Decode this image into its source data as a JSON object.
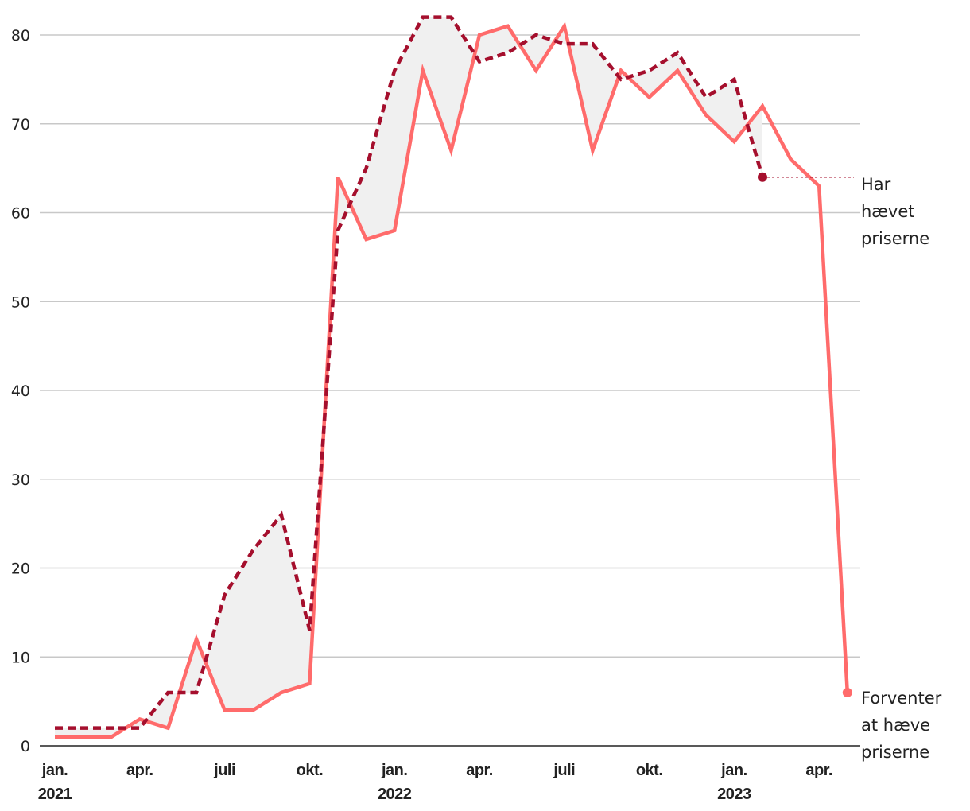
{
  "chart_data": {
    "type": "line",
    "title": "",
    "xlabel": "",
    "ylabel": "",
    "ylim": [
      0,
      80
    ],
    "yticks": [
      0,
      10,
      20,
      30,
      40,
      50,
      60,
      70,
      80
    ],
    "grid": true,
    "x": [
      "2021-01",
      "2021-02",
      "2021-03",
      "2021-04",
      "2021-05",
      "2021-06",
      "2021-07",
      "2021-08",
      "2021-09",
      "2021-10",
      "2021-11",
      "2021-12",
      "2022-01",
      "2022-02",
      "2022-03",
      "2022-04",
      "2022-05",
      "2022-06",
      "2022-07",
      "2022-08",
      "2022-09",
      "2022-10",
      "2022-11",
      "2022-12",
      "2023-01",
      "2023-02",
      "2023-03",
      "2023-04",
      "2023-05"
    ],
    "xtick_labels": [
      {
        "x": "2021-01",
        "line1": "jan.",
        "line2": "2021"
      },
      {
        "x": "2021-04",
        "line1": "apr.",
        "line2": ""
      },
      {
        "x": "2021-07",
        "line1": "juli",
        "line2": ""
      },
      {
        "x": "2021-10",
        "line1": "okt.",
        "line2": ""
      },
      {
        "x": "2022-01",
        "line1": "jan.",
        "line2": "2022"
      },
      {
        "x": "2022-04",
        "line1": "apr.",
        "line2": ""
      },
      {
        "x": "2022-07",
        "line1": "juli",
        "line2": ""
      },
      {
        "x": "2022-10",
        "line1": "okt.",
        "line2": ""
      },
      {
        "x": "2023-01",
        "line1": "jan.",
        "line2": "2023"
      },
      {
        "x": "2023-04",
        "line1": "apr.",
        "line2": ""
      }
    ],
    "series": [
      {
        "key": "expected",
        "label_lines": [
          "Forventer",
          "at hæve",
          "priserne"
        ],
        "color": "#ff6b6b",
        "style": "solid",
        "values": [
          1,
          1,
          1,
          3,
          2,
          12,
          4,
          4,
          6,
          7,
          64,
          57,
          58,
          76,
          67,
          80,
          81,
          76,
          81,
          67,
          76,
          73,
          76,
          71,
          68,
          72,
          66,
          63,
          6
        ]
      },
      {
        "key": "raised",
        "label_lines": [
          "Har",
          "hævet",
          "priserne"
        ],
        "color": "#a50f2d",
        "style": "dashed",
        "values": [
          2,
          2,
          2,
          2,
          6,
          6,
          17,
          22,
          26,
          13,
          58,
          65,
          76,
          82,
          82,
          77,
          78,
          80,
          79,
          79,
          75,
          76,
          78,
          73,
          75,
          64,
          null,
          null,
          null
        ]
      }
    ],
    "shaded_gap_color": "#f0f0f0"
  }
}
